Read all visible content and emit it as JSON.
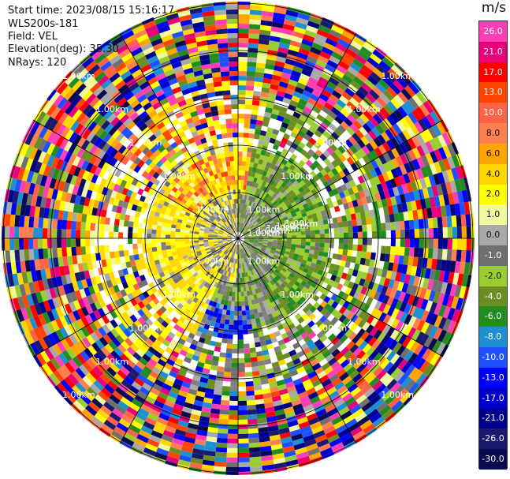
{
  "header": {
    "start_time": "Start time: 2023/08/15 15:16:17",
    "site": "WLS200s-181",
    "field": "Field: VEL",
    "elevation": "Elevation(deg): 35.30",
    "nrays": "NRays: 120"
  },
  "colorbar": {
    "unit": "m/s",
    "levels": [
      "26.0",
      "21.0",
      "17.0",
      "13.0",
      "10.0",
      "8.0",
      "6.0",
      "4.0",
      "2.0",
      "1.0",
      "0.0",
      "-1.0",
      "-2.0",
      "-4.0",
      "-6.0",
      "-8.0",
      "-10.0",
      "-13.0",
      "-17.0",
      "-21.0",
      "-26.0",
      "-30.0"
    ],
    "colors": [
      "#ff3db4",
      "#e8007a",
      "#ff0000",
      "#ff4500",
      "#ff6347",
      "#ff7f50",
      "#ffa500",
      "#ffd700",
      "#ffff00",
      "#f0f8a0",
      "#a9a9a9",
      "#707070",
      "#9acd32",
      "#6b8e23",
      "#228b22",
      "#1e8fd0",
      "#1e50ff",
      "#0000ff",
      "#0000cd",
      "#00008b",
      "#191970",
      "#0a0a50"
    ],
    "text_colors": [
      "#fff",
      "#fff",
      "#fff",
      "#fff",
      "#fff",
      "#111",
      "#111",
      "#111",
      "#111",
      "#111",
      "#111",
      "#fff",
      "#111",
      "#fff",
      "#fff",
      "#fff",
      "#fff",
      "#fff",
      "#fff",
      "#fff",
      "#fff",
      "#fff"
    ]
  },
  "chart_data": {
    "type": "heatmap",
    "title": "",
    "field": "VEL",
    "units": "m/s",
    "elevation_deg": 35.3,
    "n_rays": 120,
    "range_ring_labels": [
      "1.00km",
      "1.00km",
      "1.00km",
      "1.00km",
      "1.00km",
      "1.00km",
      "1.00km",
      "1.00km",
      "1.00km",
      "1.00km",
      "1.00km",
      "1.00km",
      "1.00km",
      "1.00km",
      "1.00km",
      "1.00km",
      "1.00km",
      "1.00km",
      "1.00km",
      "1.00km",
      "1.00km",
      "1.00km",
      "1.00km",
      "1.00km",
      "1.00km"
    ],
    "near_field": {
      "north_west": "0.0 to 4.0 (yellow, orange)",
      "north_east": "-2.0 to -4.0 (green)",
      "south_east": "-13.0 to -17.0 (blue)",
      "south_west": "2.0 to 4.0 (yellow)",
      "center": "0.0 (gray)"
    },
    "far_field": "noisy, all velocity classes"
  }
}
